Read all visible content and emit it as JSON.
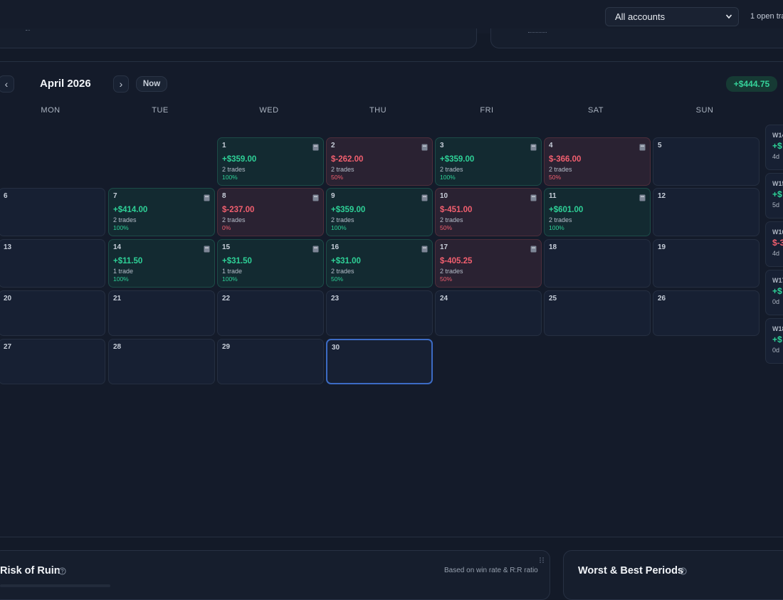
{
  "topbar": {
    "account_select": "All accounts",
    "open_trades": "1 open tra"
  },
  "calendar": {
    "month_label": "April 2026",
    "prev_label": "‹",
    "next_label": "›",
    "now_label": "Now",
    "month_total": "+$444.75",
    "weekdays": [
      "MON",
      "TUE",
      "WED",
      "THU",
      "FRI",
      "SAT",
      "SUN"
    ],
    "days": [
      {
        "day": "1",
        "pnl": "+$359.00",
        "trades": "2 trades",
        "rate": "100%",
        "result": "win",
        "note": true
      },
      {
        "day": "2",
        "pnl": "$-262.00",
        "trades": "2 trades",
        "rate": "50%",
        "result": "loss",
        "note": true
      },
      {
        "day": "3",
        "pnl": "+$359.00",
        "trades": "2 trades",
        "rate": "100%",
        "result": "win",
        "note": true
      },
      {
        "day": "4",
        "pnl": "$-366.00",
        "trades": "2 trades",
        "rate": "50%",
        "result": "loss",
        "note": true
      },
      {
        "day": "5"
      },
      {
        "day": "6"
      },
      {
        "day": "7",
        "pnl": "+$414.00",
        "trades": "2 trades",
        "rate": "100%",
        "result": "win",
        "note": true
      },
      {
        "day": "8",
        "pnl": "$-237.00",
        "trades": "2 trades",
        "rate": "0%",
        "result": "loss",
        "note": true
      },
      {
        "day": "9",
        "pnl": "+$359.00",
        "trades": "2 trades",
        "rate": "100%",
        "result": "win",
        "note": true
      },
      {
        "day": "10",
        "pnl": "$-451.00",
        "trades": "2 trades",
        "rate": "50%",
        "result": "loss",
        "note": true
      },
      {
        "day": "11",
        "pnl": "+$601.00",
        "trades": "2 trades",
        "rate": "100%",
        "result": "win",
        "note": true
      },
      {
        "day": "12"
      },
      {
        "day": "13"
      },
      {
        "day": "14",
        "pnl": "+$11.50",
        "trades": "1 trade",
        "rate": "100%",
        "result": "win",
        "note": true
      },
      {
        "day": "15",
        "pnl": "+$31.50",
        "trades": "1 trade",
        "rate": "100%",
        "result": "win",
        "note": true
      },
      {
        "day": "16",
        "pnl": "+$31.00",
        "trades": "2 trades",
        "rate": "50%",
        "result": "win",
        "note": true
      },
      {
        "day": "17",
        "pnl": "$-405.25",
        "trades": "2 trades",
        "rate": "50%",
        "result": "loss",
        "note": true
      },
      {
        "day": "18"
      },
      {
        "day": "19"
      },
      {
        "day": "20"
      },
      {
        "day": "21"
      },
      {
        "day": "22"
      },
      {
        "day": "23"
      },
      {
        "day": "24"
      },
      {
        "day": "25"
      },
      {
        "day": "26"
      },
      {
        "day": "27"
      },
      {
        "day": "28"
      },
      {
        "day": "29"
      },
      {
        "day": "30",
        "today": true
      }
    ],
    "weeks": [
      {
        "label": "W14",
        "pnl": "+$",
        "days": "4d",
        "result": "win"
      },
      {
        "label": "W15",
        "pnl": "+$",
        "days": "5d",
        "result": "win"
      },
      {
        "label": "W16",
        "pnl": "$-3",
        "days": "4d",
        "result": "loss"
      },
      {
        "label": "W17",
        "pnl": "+$",
        "days": "0d",
        "result": "win"
      },
      {
        "label": "W18",
        "pnl": "+$",
        "days": "0d",
        "result": "win"
      }
    ]
  },
  "risk_of_ruin": {
    "title": "Risk of Ruin",
    "note": "Based on win rate & R:R ratio"
  },
  "periods": {
    "title": "Worst & Best Periods"
  },
  "colors": {
    "positive": "#2ed197",
    "negative": "#f25f6f",
    "today_border": "#3c6bc4"
  }
}
